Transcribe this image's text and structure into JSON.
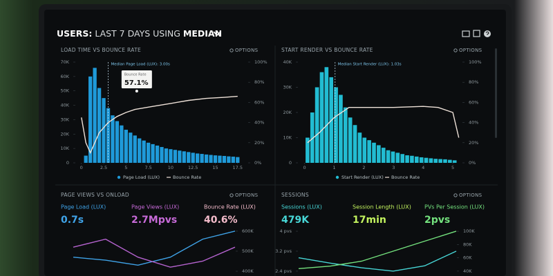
{
  "header": {
    "title_prefix": "USERS:",
    "title_range": "LAST 7 DAYS",
    "title_using": "USING",
    "title_stat": "MEDIAN"
  },
  "panels": [
    {
      "title": "LOAD TIME VS BOUNCE RATE",
      "options": "OPTIONS",
      "annotation": "Median Page Load (LUX): 3.00s",
      "tooltip": {
        "label": "Bounce Rate",
        "value": "57.1%"
      },
      "chart": {
        "type": "combo",
        "legend": true,
        "median": 3,
        "xlim": [
          -0.6,
          18.6
        ],
        "xticks": [
          0,
          2.5,
          5,
          7.5,
          10,
          12.5,
          15,
          17.5
        ],
        "ylim": [
          0,
          70000
        ],
        "yticks": [
          0,
          {
            "value": 10000,
            "label": "10K"
          },
          {
            "value": 20000,
            "label": "20K"
          },
          {
            "value": 30000,
            "label": "30K"
          },
          {
            "value": 40000,
            "label": "40K"
          },
          {
            "value": 50000,
            "label": "50K"
          },
          {
            "value": 60000,
            "label": "60K"
          },
          {
            "value": 70000,
            "label": "70K"
          }
        ],
        "y2lim": [
          0,
          100
        ],
        "y2ticks": [
          {
            "value": 0,
            "label": "0%"
          },
          {
            "value": 20,
            "label": "20%"
          },
          {
            "value": 40,
            "label": "40%"
          },
          {
            "value": 60,
            "label": "60%"
          },
          {
            "value": 80,
            "label": "80%"
          },
          {
            "value": 100,
            "label": "100%"
          }
        ],
        "series": [
          {
            "name": "Page Load (LUX)",
            "type": "bar",
            "color": "#1f9ad9",
            "x": [
              0.5,
              1,
              1.5,
              2,
              2.5,
              3,
              3.5,
              4,
              4.5,
              5,
              5.5,
              6,
              6.5,
              7,
              7.5,
              8,
              8.5,
              9,
              9.5,
              10,
              10.5,
              11,
              11.5,
              12,
              12.5,
              13,
              13.5,
              14,
              14.5,
              15,
              15.5,
              16,
              16.5,
              17,
              17.5
            ],
            "values": [
              5000,
              60000,
              66000,
              52000,
              45000,
              38000,
              33000,
              29000,
              26000,
              23000,
              21000,
              19000,
              17000,
              15500,
              14000,
              13000,
              12000,
              11000,
              10000,
              9500,
              9000,
              8500,
              8000,
              7500,
              7000,
              6500,
              6200,
              5800,
              5500,
              5200,
              5000,
              4800,
              4500,
              4300,
              4000
            ]
          },
          {
            "name": "Bounce Rate",
            "type": "line",
            "axis": "y2",
            "color": "#efe2d9",
            "x": [
              0,
              0.5,
              1,
              1.5,
              2,
              3,
              4,
              5,
              6,
              8,
              10,
              12,
              14,
              16,
              17.5
            ],
            "values": [
              45,
              20,
              10,
              20,
              30,
              40,
              46,
              50,
              53,
              56,
              59,
              62,
              64,
              65,
              66
            ]
          }
        ]
      }
    },
    {
      "title": "START RENDER VS BOUNCE RATE",
      "options": "OPTIONS",
      "annotation": "Median Start Render (LUX): 1.03s",
      "chart": {
        "type": "combo",
        "legend": true,
        "median": 1.03,
        "xlim": [
          -0.2,
          5.3
        ],
        "xticks": [
          0,
          1,
          2,
          3,
          4,
          5
        ],
        "ylim": [
          0,
          40000
        ],
        "yticks": [
          0,
          {
            "value": 10000,
            "label": "10K"
          },
          {
            "value": 20000,
            "label": "20K"
          },
          {
            "value": 30000,
            "label": "30K"
          },
          {
            "value": 40000,
            "label": "40K"
          }
        ],
        "y2lim": [
          0,
          100
        ],
        "y2ticks": [
          {
            "value": 0,
            "label": "0%"
          },
          {
            "value": 20,
            "label": "20%"
          },
          {
            "value": 40,
            "label": "40%"
          },
          {
            "value": 60,
            "label": "60%"
          },
          {
            "value": 80,
            "label": "80%"
          },
          {
            "value": 100,
            "label": "100%"
          }
        ],
        "series": [
          {
            "name": "Start Render (LUX)",
            "type": "bar",
            "color": "#22bcd2",
            "x": [
              0.1,
              0.26,
              0.42,
              0.58,
              0.74,
              0.9,
              1.06,
              1.22,
              1.38,
              1.54,
              1.7,
              1.86,
              2.02,
              2.18,
              2.34,
              2.5,
              2.66,
              2.82,
              2.98,
              3.14,
              3.3,
              3.46,
              3.62,
              3.78,
              3.94,
              4.1,
              4.26,
              4.42,
              4.58,
              4.74,
              4.9,
              5.06
            ],
            "values": [
              10000,
              20000,
              30000,
              36000,
              38000,
              34000,
              30000,
              27000,
              22000,
              18000,
              15000,
              12000,
              10000,
              9000,
              8000,
              7000,
              6000,
              5000,
              4500,
              4000,
              3500,
              3000,
              2800,
              2500,
              2200,
              2000,
              1800,
              1600,
              1500,
              1400,
              1200,
              1000
            ]
          },
          {
            "name": "Bounce Rate",
            "type": "line",
            "axis": "y2",
            "color": "#efe2d9",
            "x": [
              0.1,
              0.5,
              1,
              1.5,
              2,
              3,
              4,
              4.5,
              5,
              5.2
            ],
            "values": [
              20,
              30,
              45,
              55,
              55,
              55,
              56,
              55,
              50,
              25
            ]
          }
        ]
      }
    },
    {
      "title": "PAGE VIEWS VS ONLOAD",
      "options": "OPTIONS",
      "metrics": [
        {
          "label": "Page Load (LUX)",
          "value": "0.7s",
          "color": "#3fa3e8"
        },
        {
          "label": "Page Views (LUX)",
          "value": "2.7Mpvs",
          "color": "#c76ad8"
        },
        {
          "label": "Bounce Rate (LUX)",
          "value": "40.6%",
          "color": "#f4bccb"
        }
      ],
      "chart": {
        "type": "combo",
        "xlim": [
          0,
          10
        ],
        "y2lim": [
          383000,
          617000
        ],
        "y2ticks": [
          {
            "value": 400000,
            "label": "400K"
          },
          {
            "value": 500000,
            "label": "500K"
          },
          {
            "value": 600000,
            "label": "600K"
          }
        ],
        "series": [
          {
            "type": "line",
            "axis": "y2",
            "color": "#3fa3e8",
            "x": [
              0,
              2,
              4,
              6,
              8,
              10
            ],
            "values": [
              470000,
              455000,
              430000,
              470000,
              560000,
              600000
            ]
          },
          {
            "type": "line",
            "axis": "y2",
            "color": "#b563cf",
            "x": [
              0,
              2,
              4,
              6,
              8,
              10
            ],
            "values": [
              520000,
              560000,
              470000,
              420000,
              450000,
              520000
            ]
          }
        ]
      }
    },
    {
      "title": "SESSIONS",
      "options": "OPTIONS",
      "metrics": [
        {
          "label": "Sessions (LUX)",
          "value": "479K",
          "color": "#47d6d6"
        },
        {
          "label": "Session Length (LUX)",
          "value": "17min",
          "color": "#c2f25e"
        },
        {
          "label": "PVs Per Session (LUX)",
          "value": "2pvs",
          "color": "#74e27e"
        }
      ],
      "chart": {
        "type": "combo",
        "xlim": [
          0,
          10
        ],
        "ylim": [
          2.26,
          4.14
        ],
        "yticks": [
          {
            "value": 2.4,
            "label": "2.4 pvs"
          },
          {
            "value": 3.2,
            "label": "3.2 pvs"
          },
          {
            "value": 4,
            "label": "4 pvs"
          }
        ],
        "y2lim": [
          34700,
          105300
        ],
        "y2ticks": [
          {
            "value": 40000,
            "label": "40K"
          },
          {
            "value": 60000,
            "label": "60K"
          },
          {
            "value": 80000,
            "label": "80K"
          },
          {
            "value": 100000,
            "label": "100K"
          }
        ],
        "series": [
          {
            "type": "line",
            "axis": "y2",
            "color": "#47d6d6",
            "x": [
              0,
              2,
              4,
              6,
              8,
              10
            ],
            "values": [
              60000,
              52000,
              45000,
              40000,
              48000,
              70000
            ]
          },
          {
            "type": "line",
            "color": "#74e27e",
            "x": [
              0,
              2,
              4,
              6,
              8,
              10
            ],
            "values": [
              2.5,
              2.6,
              2.8,
              3.2,
              3.6,
              4
            ]
          }
        ]
      }
    }
  ]
}
